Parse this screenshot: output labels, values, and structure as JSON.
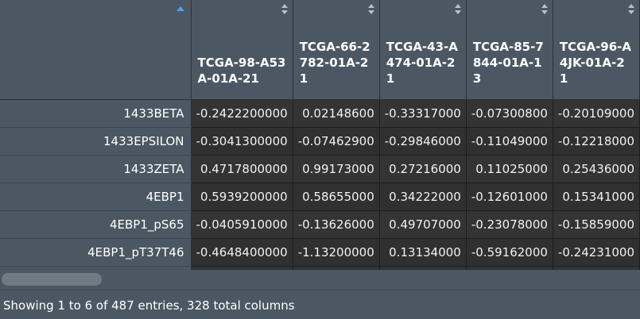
{
  "table": {
    "columns": [
      {
        "label": "TCGA-98-A53A-01A-21"
      },
      {
        "label": "TCGA-66-2782-01A-21"
      },
      {
        "label": "TCGA-43-A474-01A-21"
      },
      {
        "label": "TCGA-85-7844-01A-13"
      },
      {
        "label": "TCGA-96-A4JK-01A-21"
      }
    ],
    "rows": [
      {
        "name": "1433BETA",
        "values": [
          "-0.2422200000",
          "0.02148600",
          "-0.33317000",
          "-0.07300800",
          "-0.20109000"
        ]
      },
      {
        "name": "1433EPSILON",
        "values": [
          "-0.3041300000",
          "-0.07462900",
          "-0.29846000",
          "-0.11049000",
          "-0.12218000"
        ]
      },
      {
        "name": "1433ZETA",
        "values": [
          "0.4717800000",
          "0.99173000",
          "0.27216000",
          "0.11025000",
          "0.25436000"
        ]
      },
      {
        "name": "4EBP1",
        "values": [
          "0.5939200000",
          "0.58655000",
          "0.34222000",
          "-0.12601000",
          "0.15341000"
        ]
      },
      {
        "name": "4EBP1_pS65",
        "values": [
          "-0.0405910000",
          "-0.13626000",
          "0.49707000",
          "-0.23078000",
          "-0.15859000"
        ]
      },
      {
        "name": "4EBP1_pT37T46",
        "values": [
          "-0.4648400000",
          "-1.13200000",
          "0.13134000",
          "-0.59162000",
          "-0.24231000"
        ]
      }
    ]
  },
  "footer": {
    "info": "Showing 1 to 6 of 487 entries, 328 total columns"
  },
  "colors": {
    "header_bg": "#4b5863",
    "cell_bg": "#303030",
    "sort_asc": "#4aa3f0"
  }
}
